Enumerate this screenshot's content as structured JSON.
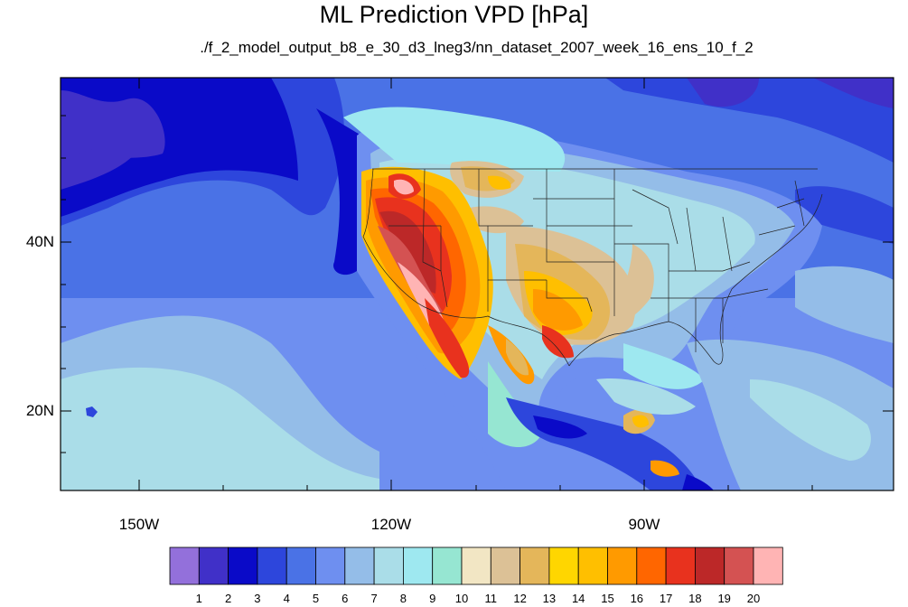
{
  "title": "ML Prediction VPD [hPa]",
  "subtitle": "./f_2_model_output_b8_e_30_d3_lneg3/nn_dataset_2007_week_16_ens_10_f_2",
  "lat_labels": [
    "40N",
    "20N"
  ],
  "lon_labels": [
    "150W",
    "120W",
    "90W"
  ],
  "colorbar": {
    "labels": [
      "1",
      "2",
      "3",
      "4",
      "5",
      "6",
      "7",
      "8",
      "9",
      "10",
      "11",
      "12",
      "13",
      "14",
      "15",
      "16",
      "17",
      "18",
      "19",
      "20"
    ],
    "colors": [
      "#9370db",
      "#4030c8",
      "#0a0ac8",
      "#2d46dc",
      "#4a72e6",
      "#6e8ff0",
      "#94bde8",
      "#aadde8",
      "#9ee8f0",
      "#96e6d2",
      "#f2e6c4",
      "#dcc196",
      "#e4b65a",
      "#ffd600",
      "#ffbf00",
      "#ff9a00",
      "#ff6600",
      "#e8321e",
      "#bc2828",
      "#d45252",
      "#ffb4b4"
    ]
  }
}
